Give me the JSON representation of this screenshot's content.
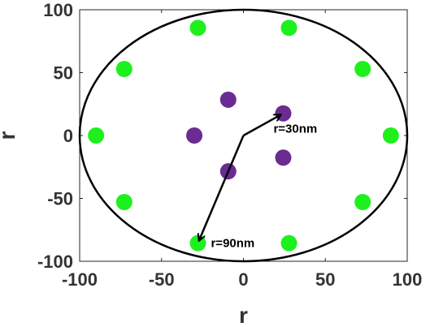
{
  "chart_data": {
    "type": "scatter",
    "xlabel": "r",
    "ylabel": "r",
    "xlim": [
      -100,
      100
    ],
    "ylim": [
      -100,
      100
    ],
    "xticks": [
      "-100",
      "-50",
      "0",
      "50",
      "100"
    ],
    "yticks": [
      "-100",
      "-50",
      "0",
      "50",
      "100"
    ],
    "grid": false,
    "series": [
      {
        "color": "#1ef01e",
        "points": [
          [
            -90,
            0
          ],
          [
            -72.8,
            52.9
          ],
          [
            -72.8,
            -52.9
          ],
          [
            -27.8,
            85.6
          ],
          [
            -27.8,
            -85.6
          ],
          [
            27.8,
            85.6
          ],
          [
            27.8,
            -85.6
          ],
          [
            72.8,
            52.9
          ],
          [
            72.8,
            -52.9
          ],
          [
            90,
            0
          ]
        ]
      },
      {
        "color": "#6a2c91",
        "points": [
          [
            24.3,
            17.6
          ],
          [
            24.3,
            -17.6
          ],
          [
            -9.3,
            28.5
          ],
          [
            -9.3,
            -28.5
          ],
          [
            -30,
            0
          ]
        ]
      }
    ],
    "boundary_circle": {
      "center": [
        0,
        0
      ],
      "radius": 100,
      "color": "#000000"
    },
    "annotations": [
      {
        "text": "r=30nm",
        "from": [
          0,
          0
        ],
        "to": [
          24.3,
          17.6
        ]
      },
      {
        "text": "r=90nm",
        "from": [
          0,
          0
        ],
        "to": [
          -27.8,
          -85.6
        ]
      }
    ]
  }
}
